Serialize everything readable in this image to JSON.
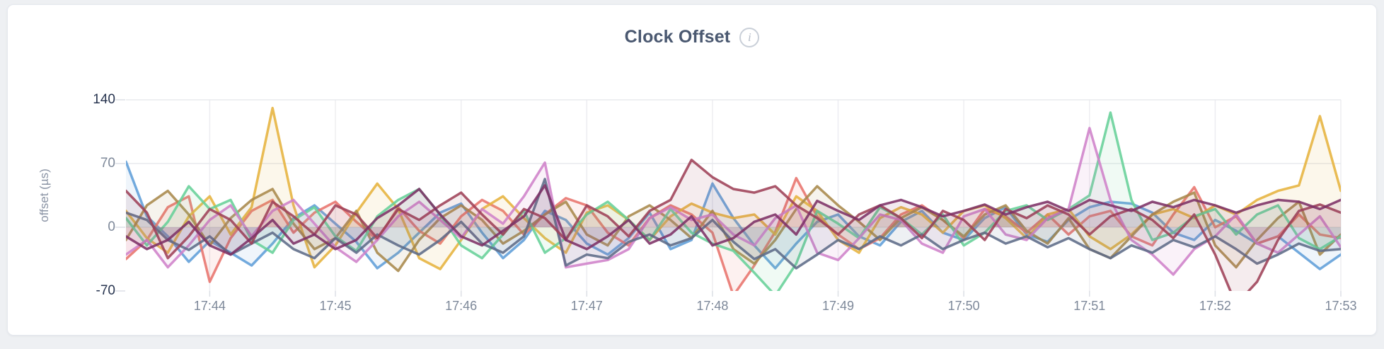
{
  "page": {
    "info_icon_glyph": "i"
  },
  "chart_data": {
    "type": "line",
    "title": "Clock Offset",
    "ylabel": "offset (µs)",
    "xlabel": "",
    "legend": "none",
    "grid": true,
    "ylim": [
      -70,
      140
    ],
    "x_domain_seconds": [
      0,
      580
    ],
    "start_time": "17:43:20",
    "end_time": "17:53:00",
    "interval_seconds": 10,
    "y_ticks": [
      {
        "label": "140",
        "value": 140,
        "strong": true
      },
      {
        "label": "70",
        "value": 70,
        "strong": false
      },
      {
        "label": "0",
        "value": 0,
        "strong": false
      },
      {
        "label": "-70",
        "value": -70,
        "strong": true
      }
    ],
    "x_ticks": [
      {
        "label": "17:44",
        "t": 40
      },
      {
        "label": "17:45",
        "t": 100
      },
      {
        "label": "17:46",
        "t": 160
      },
      {
        "label": "17:47",
        "t": 220
      },
      {
        "label": "17:48",
        "t": 280
      },
      {
        "label": "17:49",
        "t": 340
      },
      {
        "label": "17:50",
        "t": 400
      },
      {
        "label": "17:51",
        "t": 460
      },
      {
        "label": "17:52",
        "t": 520
      },
      {
        "label": "17:53",
        "t": 580
      }
    ],
    "series": [
      {
        "name": "series-1-blue",
        "color": "#609ed8",
        "values": [
          72,
          12,
          -10,
          -38,
          -15,
          -28,
          -42,
          -18,
          10,
          24,
          4,
          -16,
          -45,
          -28,
          -6,
          16,
          26,
          -6,
          -34,
          -14,
          18,
          8,
          -18,
          -30,
          -12,
          16,
          -24,
          -14,
          48,
          10,
          -20,
          -45,
          -18,
          6,
          14,
          -10,
          -20,
          6,
          18,
          -6,
          -14,
          10,
          22,
          -8,
          -16,
          8,
          22,
          28,
          26,
          16,
          -6,
          -14,
          8,
          -4,
          -18,
          -10,
          -28,
          -46,
          -30
        ]
      },
      {
        "name": "series-2-salmon",
        "color": "#e8736c",
        "values": [
          -35,
          -14,
          22,
          34,
          -60,
          -12,
          18,
          30,
          -6,
          16,
          28,
          6,
          -14,
          22,
          -4,
          -18,
          12,
          30,
          18,
          -8,
          14,
          32,
          24,
          -6,
          -20,
          10,
          24,
          14,
          -6,
          -75,
          -42,
          -5,
          54,
          12,
          -8,
          -24,
          -12,
          14,
          24,
          8,
          -12,
          20,
          12,
          -6,
          14,
          -8,
          12,
          18,
          -10,
          -20,
          14,
          44,
          0,
          12,
          -18,
          -10,
          14,
          -8,
          -12
        ]
      },
      {
        "name": "series-3-gold",
        "color": "#e6b33d",
        "values": [
          18,
          -12,
          -28,
          12,
          34,
          -8,
          22,
          131,
          24,
          -44,
          -20,
          16,
          48,
          20,
          -34,
          -46,
          -14,
          20,
          34,
          10,
          -12,
          -28,
          16,
          24,
          8,
          -14,
          12,
          26,
          16,
          10,
          14,
          -8,
          34,
          18,
          -14,
          -28,
          10,
          22,
          14,
          -6,
          18,
          24,
          10,
          -12,
          14,
          20,
          -10,
          -24,
          -8,
          14,
          20,
          10,
          24,
          14,
          30,
          40,
          46,
          122,
          40
        ]
      },
      {
        "name": "series-4-olive",
        "color": "#a8894b",
        "values": [
          -14,
          24,
          40,
          14,
          -20,
          10,
          30,
          42,
          4,
          -24,
          -12,
          18,
          -28,
          -48,
          -14,
          10,
          24,
          8,
          -18,
          -4,
          14,
          28,
          -8,
          -20,
          12,
          24,
          8,
          -12,
          18,
          -24,
          -40,
          -14,
          20,
          45,
          24,
          6,
          -14,
          10,
          22,
          8,
          -10,
          14,
          24,
          -4,
          -18,
          10,
          -24,
          -34,
          -10,
          14,
          28,
          38,
          -20,
          -44,
          -14,
          10,
          28,
          -30,
          -8
        ]
      },
      {
        "name": "series-5-green",
        "color": "#67d098",
        "values": [
          10,
          -20,
          6,
          45,
          20,
          30,
          -14,
          -28,
          8,
          22,
          -10,
          -26,
          12,
          30,
          42,
          14,
          -20,
          -34,
          -8,
          18,
          -28,
          -12,
          14,
          28,
          8,
          -14,
          20,
          -6,
          -18,
          -26,
          -50,
          -75,
          -40,
          18,
          4,
          -12,
          22,
          10,
          -8,
          14,
          -20,
          -6,
          18,
          24,
          8,
          20,
          35,
          126,
          30,
          -14,
          -6,
          12,
          20,
          -8,
          14,
          24,
          -12,
          -24,
          -10
        ]
      },
      {
        "name": "series-6-orchid",
        "color": "#cf82c9",
        "values": [
          -30,
          -14,
          -44,
          -20,
          8,
          24,
          -10,
          18,
          30,
          4,
          -22,
          -38,
          -14,
          12,
          28,
          8,
          -12,
          20,
          4,
          34,
          71,
          -44,
          -40,
          -36,
          -24,
          10,
          22,
          8,
          14,
          -8,
          -20,
          10,
          24,
          -28,
          -36,
          -12,
          14,
          8,
          -18,
          -28,
          12,
          20,
          -8,
          -14,
          10,
          20,
          109,
          30,
          -14,
          -30,
          -52,
          -24,
          -10,
          14,
          -18,
          -28,
          -8,
          12,
          -22
        ]
      },
      {
        "name": "series-7-slate",
        "color": "#5d6b87",
        "values": [
          16,
          8,
          -14,
          -25,
          -10,
          -30,
          -18,
          -6,
          -24,
          -34,
          -12,
          -28,
          -8,
          -20,
          -30,
          -14,
          6,
          -18,
          -28,
          -10,
          53,
          -42,
          -30,
          -34,
          -16,
          -8,
          -20,
          -12,
          8,
          -16,
          -35,
          -24,
          -45,
          -30,
          -14,
          -24,
          -10,
          -20,
          -8,
          -24,
          -14,
          -6,
          -18,
          -10,
          -22,
          -12,
          -24,
          -34,
          -20,
          -28,
          -14,
          -22,
          -10,
          -24,
          -40,
          -30,
          -18,
          -26,
          -24
        ]
      },
      {
        "name": "series-8-maroon",
        "color": "#9e4158",
        "values": [
          40,
          16,
          -34,
          -10,
          20,
          8,
          -18,
          28,
          12,
          -8,
          24,
          14,
          -12,
          20,
          8,
          24,
          38,
          14,
          -8,
          20,
          10,
          -14,
          24,
          12,
          -10,
          18,
          30,
          74,
          55,
          42,
          38,
          45,
          24,
          10,
          -8,
          14,
          24,
          10,
          -12,
          18,
          8,
          -14,
          20,
          10,
          24,
          14,
          -8,
          12,
          20,
          8,
          -12,
          14,
          -30,
          -85,
          -60,
          -14,
          18,
          25,
          16
        ]
      },
      {
        "name": "series-9-plum",
        "color": "#7d3166",
        "values": [
          -10,
          -24,
          -14,
          6,
          -20,
          -30,
          -12,
          8,
          -18,
          -8,
          -24,
          -14,
          10,
          24,
          42,
          14,
          -10,
          -20,
          -4,
          12,
          46,
          -14,
          -24,
          -10,
          8,
          -18,
          -8,
          12,
          -20,
          -12,
          6,
          14,
          -8,
          29,
          18,
          8,
          24,
          30,
          22,
          12,
          18,
          25,
          14,
          22,
          28,
          18,
          30,
          24,
          18,
          28,
          22,
          30,
          24,
          16,
          24,
          30,
          28,
          20,
          30
        ]
      }
    ]
  }
}
